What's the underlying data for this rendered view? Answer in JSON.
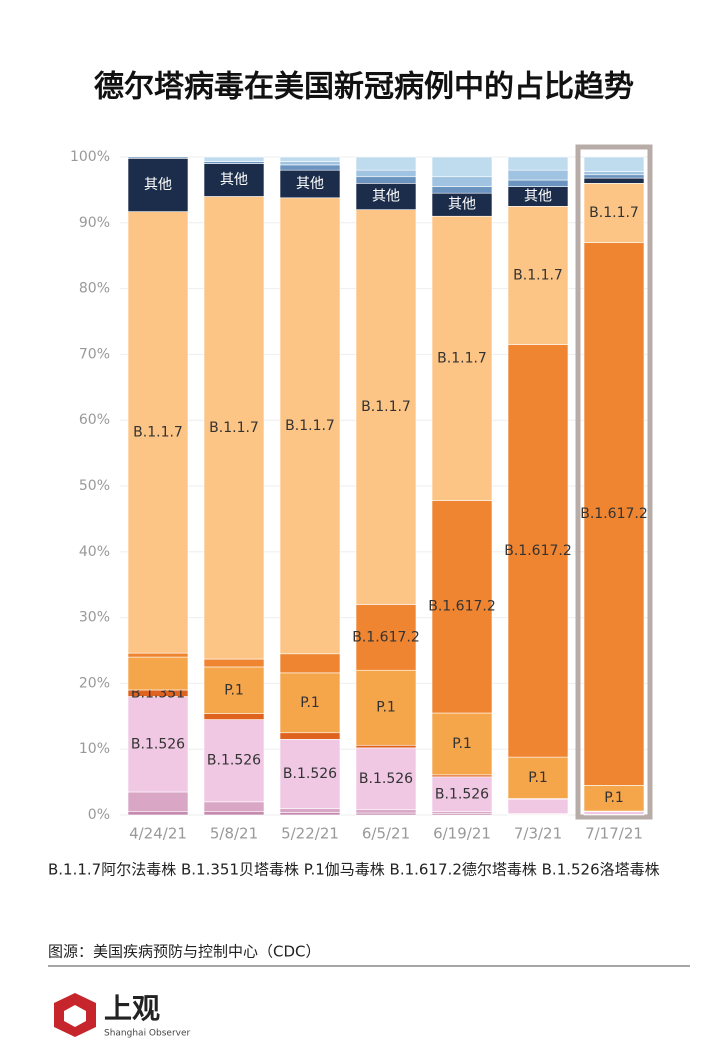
{
  "chart_data": {
    "type": "stacked_bar",
    "title": "德尔塔病毒在美国新冠病例中的占比趋势",
    "categories": [
      "4/24/21",
      "5/8/21",
      "5/22/21",
      "6/5/21",
      "6/19/21",
      "7/3/21",
      "7/17/21"
    ],
    "ylim": [
      0,
      100
    ],
    "yticks": [
      {
        "value": 0,
        "label": "0%"
      },
      {
        "value": 10,
        "label": "10%"
      },
      {
        "value": 20,
        "label": "20%"
      },
      {
        "value": 30,
        "label": "30%"
      },
      {
        "value": 40,
        "label": "40%"
      },
      {
        "value": 50,
        "label": "50%"
      },
      {
        "value": 60,
        "label": "60%"
      },
      {
        "value": 70,
        "label": "70%"
      },
      {
        "value": 80,
        "label": "80%"
      },
      {
        "value": 90,
        "label": "90%"
      },
      {
        "value": 100,
        "label": "100%"
      }
    ],
    "grid": true,
    "series": [
      {
        "color": "#c48aae",
        "values": [
          0.5,
          0.5,
          0.4,
          0.3,
          0.2,
          0.1,
          0
        ]
      },
      {
        "color": "#d9a6c6",
        "values": [
          3.0,
          1.5,
          0.6,
          0.5,
          0.3,
          0.1,
          0.1
        ]
      },
      {
        "name": "B.1.526",
        "color": "#f0c8e4",
        "values": [
          14.5,
          12.5,
          10.5,
          9.4,
          5.3,
          2.2,
          0.4
        ],
        "value_labels": [
          "B.1.526",
          "B.1.526",
          "B.1.526",
          "B.1.526",
          "B.1.526",
          null,
          null
        ]
      },
      {
        "name": "B.1.351",
        "color": "#e0621f",
        "values": [
          1.0,
          0.9,
          1.0,
          0.4,
          0.3,
          0.1,
          0.1
        ],
        "value_labels": [
          "B.1.351",
          null,
          null,
          null,
          null,
          null,
          null
        ]
      },
      {
        "name": "P.1",
        "color": "#f5a54a",
        "values": [
          5.0,
          7.1,
          9.1,
          11.4,
          9.4,
          6.3,
          3.9
        ],
        "value_labels": [
          null,
          "P.1",
          "P.1",
          "P.1",
          "P.1",
          "P.1",
          "P.1"
        ]
      },
      {
        "name": "B.1.617.2",
        "color": "#ef8530",
        "values": [
          0.6,
          1.2,
          2.9,
          10.0,
          32.3,
          62.7,
          82.5
        ],
        "value_labels": [
          null,
          null,
          null,
          "B.1.617.2",
          "B.1.617.2",
          "B.1.617.2",
          "B.1.617.2"
        ]
      },
      {
        "name": "B.1.1.7",
        "color": "#fdc585",
        "values": [
          67.1,
          70.3,
          69.3,
          60.0,
          43.2,
          21.0,
          9.0
        ],
        "value_labels": [
          "B.1.1.7",
          "B.1.1.7",
          "B.1.1.7",
          "B.1.1.7",
          "B.1.1.7",
          "B.1.1.7",
          "B.1.1.7"
        ]
      },
      {
        "name": "其他",
        "color": "#1b2d4a",
        "values": [
          8.1,
          5.0,
          4.2,
          4.0,
          3.5,
          3.0,
          0.8
        ],
        "value_labels": [
          "其他",
          "其他",
          "其他",
          "其他",
          "其他",
          "其他",
          null
        ]
      },
      {
        "color": "#6a93c0",
        "values": [
          0.2,
          0.3,
          0.8,
          1.0,
          1.0,
          1.0,
          0.5
        ]
      },
      {
        "color": "#9fc3e0",
        "values": [
          0,
          0,
          0.5,
          1.0,
          1.5,
          1.5,
          0.5
        ]
      },
      {
        "color": "#bfdcef",
        "values": [
          0,
          0.7,
          0.7,
          2.0,
          3.0,
          2.0,
          2.2
        ]
      }
    ],
    "legend_note": "B.1.1.7阿尔法毒株  B.1.351贝塔毒株  P.1伽马毒株  B.1.617.2德尔塔毒株  B.1.526洛塔毒株",
    "source": "图源：美国疾病预防与控制中心（CDC）"
  },
  "brand": {
    "name": "上观",
    "subtitle": "Shanghai Observer"
  }
}
